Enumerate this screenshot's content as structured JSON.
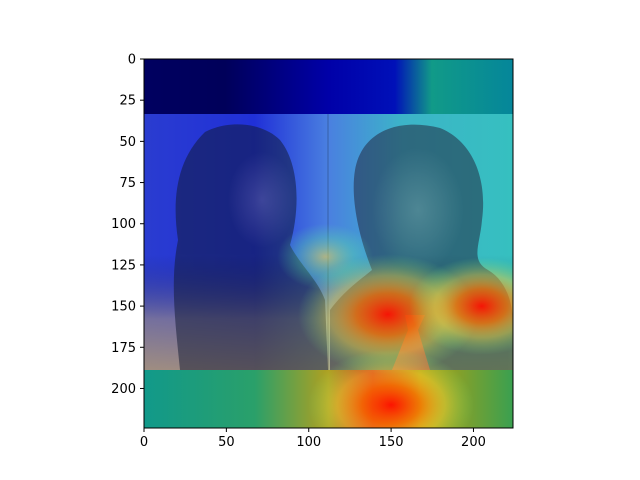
{
  "chart_data": {
    "type": "heatmap",
    "title": "",
    "xlabel": "",
    "ylabel": "",
    "xlim": [
      0,
      224
    ],
    "ylim": [
      224,
      0
    ],
    "x_ticks": [
      0,
      50,
      100,
      150,
      200
    ],
    "y_ticks": [
      0,
      25,
      50,
      75,
      100,
      125,
      150,
      175,
      200
    ],
    "colormap": "jet",
    "overlay_image": "two-face-photo",
    "image_extent": {
      "x": [
        0,
        224
      ],
      "y": [
        33,
        189
      ]
    },
    "heat_hotspots": [
      {
        "x": 148,
        "y": 155,
        "intensity": 1.0
      },
      {
        "x": 150,
        "y": 210,
        "intensity": 0.9
      },
      {
        "x": 205,
        "y": 150,
        "intensity": 0.75
      },
      {
        "x": 110,
        "y": 120,
        "intensity": 0.4
      }
    ],
    "top_band_colors": [
      "#00004f",
      "#00009a",
      "#009b8a"
    ]
  }
}
